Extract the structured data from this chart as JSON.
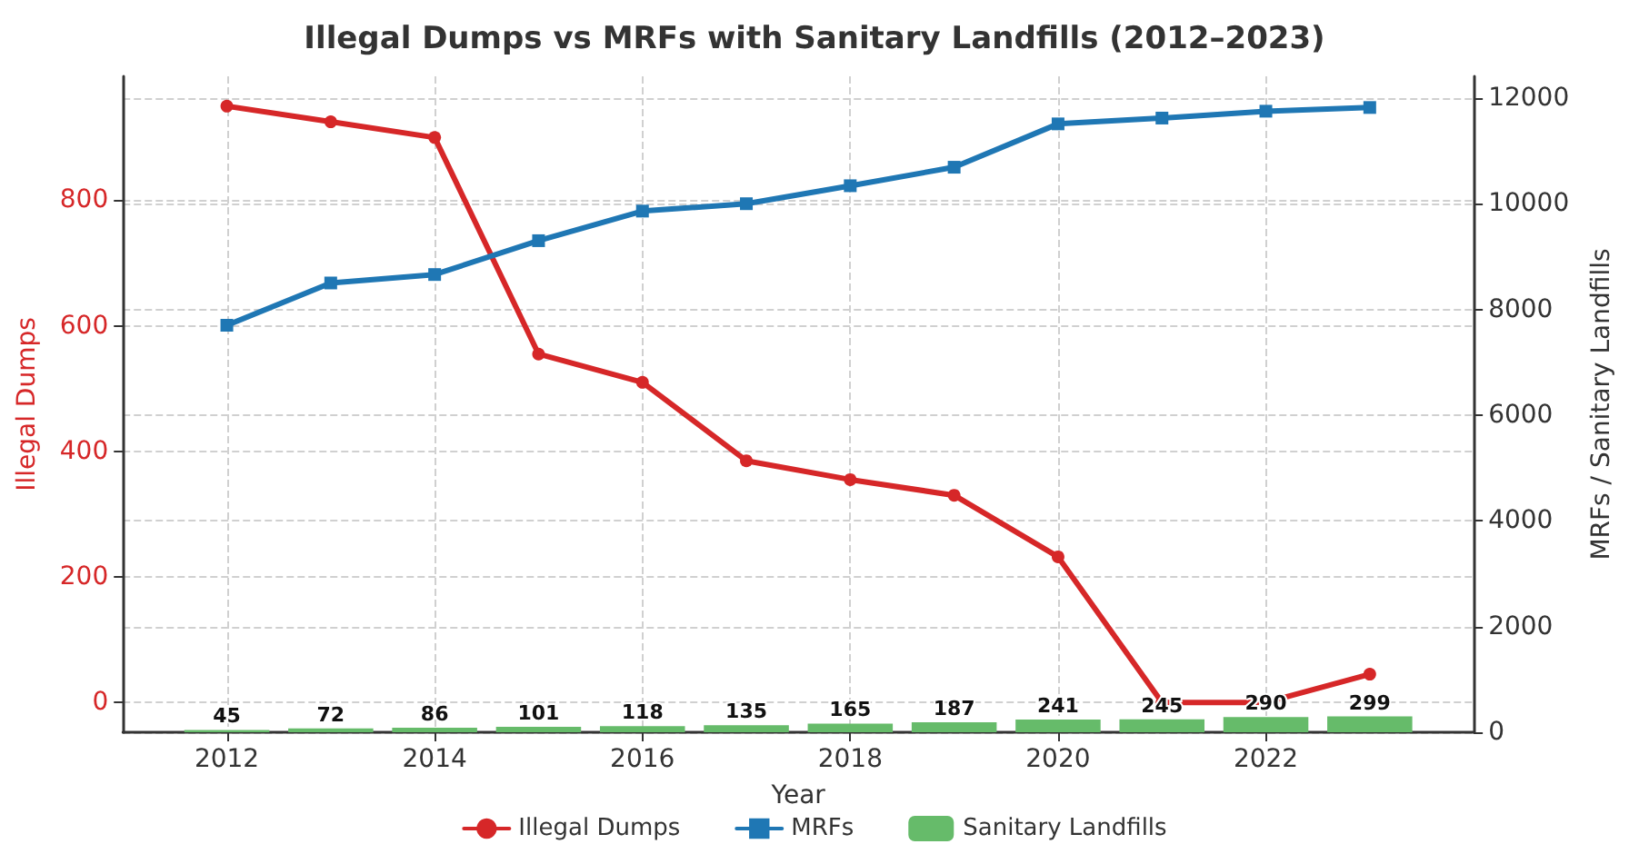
{
  "chart_data": {
    "type": "line",
    "title": "Illegal Dumps vs MRFs with Sanitary Landfills (2012–2023)",
    "xlabel": "Year",
    "ylabel": "Illegal Dumps",
    "y2label": "MRFs / Sanitary Landfills",
    "x": [
      2012,
      2013,
      2014,
      2015,
      2016,
      2017,
      2018,
      2019,
      2020,
      2021,
      2022,
      2023
    ],
    "series": [
      {
        "name": "Sanitary Landfills",
        "type": "bar",
        "axis": "y2",
        "color": "#66bb6a",
        "values": [
          45,
          72,
          86,
          101,
          118,
          135,
          165,
          187,
          241,
          245,
          290,
          299
        ],
        "value_labels": [
          "45",
          "72",
          "86",
          "101",
          "118",
          "135",
          "165",
          "187",
          "241",
          "245",
          "290",
          "299"
        ]
      },
      {
        "name": "Illegal Dumps",
        "color": "#d62728",
        "marker": "circle",
        "values": [
          950,
          925,
          900,
          555,
          510,
          385,
          355,
          330,
          232,
          0,
          0,
          45
        ]
      },
      {
        "name": "MRFs",
        "axis": "y2",
        "color": "#1f77b4",
        "marker": "square",
        "values": [
          7700,
          8500,
          8660,
          9300,
          9860,
          10000,
          10340,
          10690,
          11510,
          11620,
          11750,
          11820
        ]
      }
    ],
    "xlim": [
      2011,
      2024
    ],
    "xticks": [
      2012,
      2014,
      2016,
      2018,
      2020,
      2022
    ],
    "ylim": [
      -47.5,
      997.5
    ],
    "yticks": [
      0,
      200,
      400,
      600,
      800
    ],
    "y2lim": [
      0,
      12410
    ],
    "y2ticks": [
      0,
      2000,
      4000,
      6000,
      8000,
      10000,
      12000
    ],
    "grid": true,
    "legend": "bottom",
    "line_style": "solid"
  }
}
